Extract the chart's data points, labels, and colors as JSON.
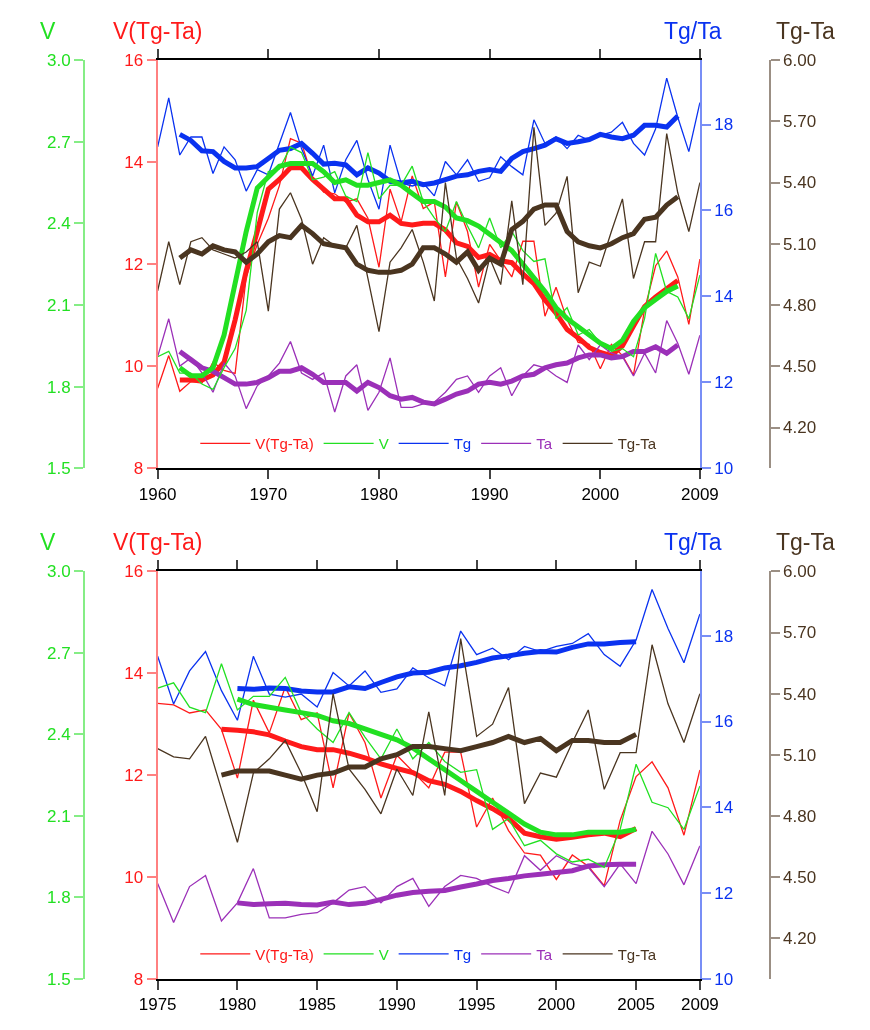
{
  "chart_data": [
    {
      "type": "line",
      "ylabel": "V(Tg-Ta)",
      "y2label": "Tg/Ta",
      "y3label": "V",
      "legend": "bottom",
      "xlim": [
        1960,
        2009
      ],
      "xticks": [
        1960,
        1970,
        1980,
        1990,
        2000,
        2009
      ],
      "ylim": [
        8,
        16
      ],
      "yticks": [
        8,
        10,
        12,
        14,
        16
      ],
      "y2lim": [
        10,
        19.5
      ],
      "y2ticks": [
        10,
        12,
        14,
        16,
        18
      ],
      "y3lim": [
        1.5,
        3.0
      ],
      "y3ticks": [
        1.5,
        1.8,
        2.1,
        2.4,
        2.7,
        {
          "value": 3.0,
          "label": "3.0"
        }
      ],
      "x": [
        1960,
        1961,
        1962,
        1963,
        1964,
        1965,
        1966,
        1967,
        1968,
        1969,
        1970,
        1971,
        1972,
        1973,
        1974,
        1975,
        1976,
        1977,
        1978,
        1979,
        1980,
        1981,
        1982,
        1983,
        1984,
        1985,
        1986,
        1987,
        1988,
        1989,
        1990,
        1991,
        1992,
        1993,
        1994,
        1995,
        1996,
        1997,
        1998,
        1999,
        2000,
        2001,
        2002,
        2003,
        2004,
        2005,
        2006,
        2007,
        2008,
        2009
      ],
      "series": [
        {
          "name": "V(Tg-Ta)",
          "color": "#ff1a1a",
          "values": [
            9.57,
            10.21,
            9.51,
            9.7,
            9.67,
            10.08,
            9.92,
            9.86,
            11.75,
            12.39,
            12.9,
            13.54,
            14.46,
            14.37,
            13.7,
            13.41,
            13.38,
            13.22,
            13.28,
            12.9,
            11.94,
            13.47,
            12.83,
            13.73,
            13.09,
            13.22,
            11.75,
            13.22,
            12.64,
            11.55,
            12.39,
            12.07,
            11.75,
            12.45,
            12.45,
            10.98,
            11.55,
            10.91,
            10.47,
            10.43,
            9.95,
            10.43,
            10.21,
            9.83,
            11.11,
            11.97,
            12.26,
            11.75,
            10.82,
            12.1
          ]
        },
        {
          "name": "V",
          "axis": "y3",
          "color": "#22e022",
          "values": [
            1.91,
            1.93,
            1.85,
            1.85,
            1.81,
            1.79,
            1.87,
            1.94,
            2.08,
            2.44,
            2.59,
            2.6,
            2.68,
            2.66,
            2.56,
            2.57,
            2.59,
            2.5,
            2.48,
            2.66,
            2.49,
            2.54,
            2.54,
            2.61,
            2.48,
            2.42,
            2.37,
            2.48,
            2.39,
            2.31,
            2.42,
            2.31,
            2.37,
            2.3,
            2.26,
            2.27,
            2.05,
            2.09,
            1.99,
            2.01,
            1.96,
            1.93,
            1.94,
            1.91,
            2.05,
            2.29,
            2.15,
            2.13,
            2.05,
            2.21
          ]
        },
        {
          "name": "Tg",
          "axis": "y2",
          "color": "#0a32f0",
          "values": [
            17.48,
            18.62,
            17.29,
            17.71,
            17.71,
            16.86,
            17.48,
            17.18,
            16.45,
            16.95,
            16.83,
            17.56,
            18.28,
            17.44,
            16.8,
            17.52,
            16.41,
            17.18,
            17.63,
            16.72,
            16.03,
            17.52,
            16.64,
            16.57,
            16.64,
            16.34,
            17.14,
            16.83,
            17.18,
            16.68,
            16.76,
            17.25,
            17.02,
            16.83,
            18.11,
            17.56,
            17.71,
            17.44,
            17.75,
            17.63,
            17.75,
            17.82,
            18.05,
            17.56,
            17.29,
            17.9,
            19.08,
            18.17,
            17.37,
            18.51
          ]
        },
        {
          "name": "Ta",
          "axis": "y2",
          "color": "#9b30b8",
          "values": [
            12.6,
            13.48,
            12.38,
            12.57,
            12.22,
            11.77,
            12.45,
            12.15,
            11.39,
            11.92,
            12.15,
            12.45,
            12.95,
            12.22,
            12.07,
            12.22,
            11.31,
            12.15,
            12.41,
            11.35,
            11.77,
            12.57,
            11.42,
            11.42,
            11.5,
            11.54,
            11.77,
            12.07,
            12.15,
            11.77,
            12.15,
            12.34,
            11.69,
            12.15,
            12.41,
            12.34,
            12.15,
            12.0,
            12.87,
            12.53,
            12.87,
            12.68,
            12.6,
            12.15,
            12.68,
            12.22,
            13.44,
            12.91,
            12.19,
            13.1
          ]
        },
        {
          "color": "#ff1a1a",
          "x": [
            1962,
            1963,
            1964,
            1965,
            1966,
            1967,
            1968,
            1969,
            1970,
            1971,
            1972,
            1973,
            1974,
            1975,
            1976,
            1977,
            1978,
            1979,
            1980,
            1981,
            1982,
            1983,
            1984,
            1985,
            1986,
            1987,
            1988,
            1989,
            1990,
            1991,
            1992,
            1993,
            1994,
            1995,
            1996,
            1997,
            1998,
            1999,
            2000,
            2001,
            2002,
            2003,
            2004,
            2005,
            2006,
            2007
          ],
          "values": [
            9.73,
            9.73,
            9.73,
            9.83,
            10.08,
            10.91,
            11.87,
            12.64,
            13.47,
            13.66,
            13.89,
            13.89,
            13.66,
            13.47,
            13.28,
            13.28,
            12.96,
            12.83,
            12.83,
            12.96,
            12.8,
            12.77,
            12.8,
            12.8,
            12.67,
            12.42,
            12.35,
            12.13,
            12.19,
            12.07,
            12.03,
            11.81,
            11.62,
            11.3,
            11.04,
            10.72,
            10.56,
            10.37,
            10.27,
            10.21,
            10.4,
            10.79,
            11.17,
            11.36,
            11.52,
            11.68
          ]
        },
        {
          "axis": "y3",
          "color": "#22e022",
          "x": [
            1962,
            1963,
            1964,
            1965,
            1966,
            1967,
            1968,
            1969,
            1970,
            1971,
            1972,
            1973,
            1974,
            1975,
            1976,
            1977,
            1978,
            1979,
            1980,
            1981,
            1982,
            1983,
            1984,
            1985,
            1986,
            1987,
            1988,
            1989,
            1990,
            1991,
            1992,
            1993,
            1994,
            1995,
            1996,
            1997,
            1998,
            1999,
            2000,
            2001,
            2002,
            2003,
            2004,
            2005,
            2006,
            2007
          ],
          "values": [
            1.87,
            1.84,
            1.84,
            1.87,
            1.99,
            2.18,
            2.37,
            2.53,
            2.57,
            2.61,
            2.62,
            2.62,
            2.62,
            2.59,
            2.55,
            2.56,
            2.54,
            2.54,
            2.55,
            2.56,
            2.54,
            2.51,
            2.48,
            2.48,
            2.46,
            2.42,
            2.41,
            2.39,
            2.36,
            2.33,
            2.3,
            2.25,
            2.2,
            2.15,
            2.09,
            2.05,
            2.02,
            1.99,
            1.96,
            1.94,
            1.97,
            2.04,
            2.09,
            2.12,
            2.15,
            2.17
          ]
        },
        {
          "axis": "y2",
          "color": "#0a32f0",
          "x": [
            1962,
            1963,
            1964,
            1965,
            1966,
            1967,
            1968,
            1969,
            1970,
            1971,
            1972,
            1973,
            1974,
            1975,
            1976,
            1977,
            1978,
            1979,
            1980,
            1981,
            1982,
            1983,
            1984,
            1985,
            1986,
            1987,
            1988,
            1989,
            1990,
            1991,
            1992,
            1993,
            1994,
            1995,
            1996,
            1997,
            1998,
            1999,
            2000,
            2001,
            2002,
            2003,
            2004,
            2005,
            2006,
            2007
          ],
          "values": [
            17.77,
            17.63,
            17.39,
            17.37,
            17.14,
            16.99,
            16.99,
            17.02,
            17.21,
            17.4,
            17.44,
            17.56,
            17.33,
            17.08,
            17.1,
            17.06,
            16.83,
            16.99,
            16.87,
            16.68,
            16.64,
            16.68,
            16.6,
            16.64,
            16.72,
            16.8,
            16.83,
            16.91,
            16.95,
            16.91,
            17.21,
            17.37,
            17.44,
            17.52,
            17.67,
            17.56,
            17.6,
            17.65,
            17.77,
            17.71,
            17.67,
            17.75,
            17.98,
            17.98,
            17.94,
            18.2
          ]
        },
        {
          "axis": "y2",
          "color": "#9b30b8",
          "x": [
            1962,
            1963,
            1964,
            1965,
            1966,
            1967,
            1968,
            1969,
            1970,
            1971,
            1972,
            1973,
            1974,
            1975,
            1976,
            1977,
            1978,
            1979,
            1980,
            1981,
            1982,
            1983,
            1984,
            1985,
            1986,
            1987,
            1988,
            1989,
            1990,
            1991,
            1992,
            1993,
            1994,
            1995,
            1996,
            1997,
            1998,
            1999,
            2000,
            2001,
            2002,
            2003,
            2004,
            2005,
            2006,
            2007
          ],
          "values": [
            12.72,
            12.53,
            12.34,
            12.26,
            12.11,
            11.96,
            11.96,
            12.0,
            12.11,
            12.26,
            12.26,
            12.34,
            12.19,
            12.0,
            12.0,
            12.0,
            11.8,
            12.0,
            11.88,
            11.69,
            11.61,
            11.65,
            11.54,
            11.5,
            11.61,
            11.73,
            11.8,
            11.96,
            12.0,
            11.96,
            12.03,
            12.15,
            12.19,
            12.34,
            12.41,
            12.45,
            12.57,
            12.64,
            12.64,
            12.57,
            12.6,
            12.72,
            12.72,
            12.83,
            12.68,
            12.87
          ]
        }
      ]
    },
    {
      "type": "line",
      "ylabel": "Tg-Ta",
      "legend": "bottom",
      "tick_labels": "y",
      "xlim": [
        1960,
        2009
      ],
      "ylim": [
        4.0,
        6.0
      ],
      "yticks": [
        {
          "value": 4.2,
          "label": "4.20"
        },
        {
          "value": 4.5,
          "label": "4.50"
        },
        {
          "value": 4.8,
          "label": "4.80"
        },
        {
          "value": 5.1,
          "label": "5.10"
        },
        {
          "value": 5.4,
          "label": "5.40"
        },
        {
          "value": 5.7,
          "label": "5.70"
        },
        {
          "value": 6.0,
          "label": "6.00"
        }
      ],
      "x": [
        1960,
        1961,
        1962,
        1963,
        1964,
        1965,
        1966,
        1967,
        1968,
        1969,
        1970,
        1971,
        1972,
        1973,
        1974,
        1975,
        1976,
        1977,
        1978,
        1979,
        1980,
        1981,
        1982,
        1983,
        1984,
        1985,
        1986,
        1987,
        1988,
        1989,
        1990,
        1991,
        1992,
        1993,
        1994,
        1995,
        1996,
        1997,
        1998,
        1999,
        2000,
        2001,
        2002,
        2003,
        2004,
        2005,
        2006,
        2007,
        2008,
        2009
      ],
      "series": [
        {
          "name": "Tg-Ta",
          "color": "#4a3520",
          "values": [
            4.87,
            5.11,
            4.9,
            5.11,
            5.13,
            5.07,
            5.05,
            5.03,
            5.06,
            5.11,
            4.77,
            5.27,
            5.35,
            5.22,
            5.0,
            5.13,
            5.09,
            5.08,
            5.19,
            4.93,
            4.67,
            5.01,
            5.08,
            5.17,
            5.01,
            4.82,
            5.4,
            5.03,
            4.93,
            4.81,
            5.03,
            4.9,
            5.31,
            4.9,
            5.67,
            5.19,
            5.25,
            5.43,
            4.86,
            5.01,
            4.99,
            5.16,
            5.32,
            4.93,
            5.11,
            5.11,
            5.64,
            5.35,
            5.16,
            5.4
          ]
        },
        {
          "color": "#4a3520",
          "x": [
            1962,
            1963,
            1964,
            1965,
            1966,
            1967,
            1968,
            1969,
            1970,
            1971,
            1972,
            1973,
            1974,
            1975,
            1976,
            1977,
            1978,
            1979,
            1980,
            1981,
            1982,
            1983,
            1984,
            1985,
            1986,
            1987,
            1988,
            1989,
            1990,
            1991,
            1992,
            1993,
            1994,
            1995,
            1996,
            1997,
            1998,
            1999,
            2000,
            2001,
            2002,
            2003,
            2004,
            2005,
            2006,
            2007
          ],
          "values": [
            5.03,
            5.07,
            5.05,
            5.09,
            5.07,
            5.06,
            5.01,
            5.05,
            5.11,
            5.14,
            5.13,
            5.19,
            5.15,
            5.1,
            5.09,
            5.08,
            5.0,
            4.97,
            4.96,
            4.96,
            4.97,
            5.0,
            5.08,
            5.08,
            5.05,
            5.01,
            5.06,
            4.97,
            5.03,
            5.0,
            5.17,
            5.21,
            5.27,
            5.29,
            5.29,
            5.16,
            5.11,
            5.09,
            5.08,
            5.1,
            5.13,
            5.15,
            5.22,
            5.23,
            5.29,
            5.33
          ]
        }
      ]
    },
    {
      "type": "line",
      "ylabel": "V(Tg-Ta)",
      "y2label": "Tg/Ta",
      "y3label": "V",
      "legend": "bottom",
      "xlim": [
        1975,
        2009
      ],
      "xticks": [
        1975,
        1980,
        1985,
        1990,
        1995,
        2000,
        2005,
        2009
      ],
      "ylim": [
        8,
        16
      ],
      "yticks": [
        8,
        10,
        12,
        14,
        16
      ],
      "y2lim": [
        10,
        19.5
      ],
      "y2ticks": [
        10,
        12,
        14,
        16,
        18
      ],
      "y3lim": [
        1.5,
        3.0
      ],
      "y3ticks": [
        1.5,
        1.8,
        2.1,
        2.4,
        2.7,
        {
          "value": 3.0,
          "label": "3.0"
        }
      ],
      "x": [
        1975,
        1976,
        1977,
        1978,
        1979,
        1980,
        1981,
        1982,
        1983,
        1984,
        1985,
        1986,
        1987,
        1988,
        1989,
        1990,
        1991,
        1992,
        1993,
        1994,
        1995,
        1996,
        1997,
        1998,
        1999,
        2000,
        2001,
        2002,
        2003,
        2004,
        2005,
        2006,
        2007,
        2008,
        2009
      ],
      "series": [
        {
          "name": "V(Tg-Ta)",
          "color": "#ff1a1a",
          "values": [
            13.41,
            13.38,
            13.22,
            13.28,
            12.9,
            11.94,
            13.47,
            12.83,
            13.73,
            13.09,
            13.22,
            11.75,
            13.22,
            12.64,
            11.55,
            12.39,
            12.07,
            11.75,
            12.45,
            12.45,
            10.98,
            11.55,
            10.91,
            10.47,
            10.43,
            9.95,
            10.43,
            10.21,
            9.83,
            11.11,
            11.97,
            12.26,
            11.75,
            10.82,
            12.1
          ]
        },
        {
          "name": "V",
          "axis": "y3",
          "color": "#22e022",
          "values": [
            2.57,
            2.59,
            2.5,
            2.48,
            2.66,
            2.49,
            2.54,
            2.54,
            2.61,
            2.48,
            2.42,
            2.37,
            2.48,
            2.39,
            2.31,
            2.42,
            2.31,
            2.37,
            2.3,
            2.26,
            2.27,
            2.05,
            2.09,
            1.99,
            2.01,
            1.96,
            1.93,
            1.94,
            1.91,
            2.05,
            2.29,
            2.15,
            2.13,
            2.05,
            2.21
          ]
        },
        {
          "name": "Tg",
          "axis": "y2",
          "color": "#0a32f0",
          "values": [
            17.52,
            16.41,
            17.18,
            17.63,
            16.72,
            16.03,
            17.52,
            16.64,
            16.57,
            16.64,
            16.34,
            17.14,
            16.83,
            17.18,
            16.68,
            16.76,
            17.25,
            17.02,
            16.83,
            18.11,
            17.56,
            17.71,
            17.44,
            17.75,
            17.63,
            17.75,
            17.82,
            18.05,
            17.56,
            17.29,
            17.9,
            19.08,
            18.17,
            17.37,
            18.51
          ]
        },
        {
          "name": "Ta",
          "axis": "y2",
          "color": "#9b30b8",
          "values": [
            12.22,
            11.31,
            12.15,
            12.41,
            11.35,
            11.77,
            12.57,
            11.42,
            11.42,
            11.5,
            11.54,
            11.77,
            12.07,
            12.15,
            11.77,
            12.15,
            12.34,
            11.69,
            12.15,
            12.41,
            12.34,
            12.15,
            12.0,
            12.87,
            12.53,
            12.87,
            12.68,
            12.6,
            12.15,
            12.68,
            12.22,
            13.44,
            12.91,
            12.19,
            13.1
          ]
        },
        {
          "color": "#ff1a1a",
          "x": [
            1979,
            1980,
            1981,
            1982,
            1983,
            1984,
            1985,
            1986,
            1987,
            1988,
            1989,
            1990,
            1991,
            1992,
            1993,
            1994,
            1995,
            1996,
            1997,
            1998,
            1999,
            2000,
            2001,
            2002,
            2003,
            2004,
            2005
          ],
          "values": [
            12.9,
            12.88,
            12.85,
            12.79,
            12.67,
            12.56,
            12.5,
            12.5,
            12.43,
            12.34,
            12.22,
            12.13,
            12.05,
            11.89,
            11.82,
            11.68,
            11.5,
            11.34,
            11.15,
            10.86,
            10.79,
            10.74,
            10.78,
            10.83,
            10.86,
            10.79,
            10.95
          ]
        },
        {
          "axis": "y3",
          "color": "#22e022",
          "x": [
            1980,
            1981,
            1982,
            1983,
            1984,
            1985,
            1986,
            1987,
            1988,
            1989,
            1990,
            1991,
            1992,
            1993,
            1994,
            1995,
            1996,
            1997,
            1998,
            1999,
            2000,
            2001,
            2002,
            2003,
            2004,
            2005
          ],
          "values": [
            2.53,
            2.51,
            2.5,
            2.49,
            2.48,
            2.47,
            2.45,
            2.44,
            2.42,
            2.4,
            2.38,
            2.35,
            2.31,
            2.27,
            2.23,
            2.19,
            2.15,
            2.11,
            2.07,
            2.04,
            2.03,
            2.03,
            2.04,
            2.04,
            2.04,
            2.05
          ]
        },
        {
          "axis": "y2",
          "color": "#0a32f0",
          "x": [
            1980,
            1981,
            1982,
            1983,
            1984,
            1985,
            1986,
            1987,
            1988,
            1989,
            1990,
            1991,
            1992,
            1993,
            1994,
            1995,
            1996,
            1997,
            1998,
            1999,
            2000,
            2001,
            2002,
            2003,
            2004,
            2005
          ],
          "values": [
            16.77,
            16.75,
            16.78,
            16.77,
            16.71,
            16.69,
            16.69,
            16.81,
            16.77,
            16.91,
            17.04,
            17.13,
            17.15,
            17.25,
            17.3,
            17.38,
            17.48,
            17.53,
            17.59,
            17.63,
            17.62,
            17.73,
            17.81,
            17.81,
            17.84,
            17.86
          ]
        },
        {
          "axis": "y2",
          "color": "#9b30b8",
          "x": [
            1980,
            1981,
            1982,
            1983,
            1984,
            1985,
            1986,
            1987,
            1988,
            1989,
            1990,
            1991,
            1992,
            1993,
            1994,
            1995,
            1996,
            1997,
            1998,
            1999,
            2000,
            2001,
            2002,
            2003,
            2004,
            2005
          ],
          "values": [
            11.77,
            11.73,
            11.75,
            11.76,
            11.73,
            11.72,
            11.79,
            11.73,
            11.76,
            11.85,
            11.95,
            12.01,
            12.04,
            12.06,
            12.14,
            12.21,
            12.29,
            12.34,
            12.4,
            12.44,
            12.48,
            12.52,
            12.63,
            12.66,
            12.67,
            12.67
          ]
        }
      ]
    },
    {
      "type": "line",
      "ylabel": "Tg-Ta",
      "legend": "bottom",
      "tick_labels": "y",
      "xlim": [
        1975,
        2009
      ],
      "ylim": [
        4.0,
        6.0
      ],
      "yticks": [
        {
          "value": 4.2,
          "label": "4.20"
        },
        {
          "value": 4.5,
          "label": "4.50"
        },
        {
          "value": 4.8,
          "label": "4.80"
        },
        {
          "value": 5.1,
          "label": "5.10"
        },
        {
          "value": 5.4,
          "label": "5.40"
        },
        {
          "value": 5.7,
          "label": "5.70"
        },
        {
          "value": 6.0,
          "label": "6.00"
        }
      ],
      "x": [
        1975,
        1976,
        1977,
        1978,
        1979,
        1980,
        1981,
        1982,
        1983,
        1984,
        1985,
        1986,
        1987,
        1988,
        1989,
        1990,
        1991,
        1992,
        1993,
        1994,
        1995,
        1996,
        1997,
        1998,
        1999,
        2000,
        2001,
        2002,
        2003,
        2004,
        2005,
        2006,
        2007,
        2008,
        2009
      ],
      "series": [
        {
          "name": "Tg-Ta",
          "color": "#4a3520",
          "values": [
            5.13,
            5.09,
            5.08,
            5.19,
            4.93,
            4.67,
            5.01,
            5.08,
            5.17,
            5.01,
            4.82,
            5.4,
            5.03,
            4.93,
            4.81,
            5.03,
            4.9,
            5.31,
            4.9,
            5.67,
            5.19,
            5.25,
            5.43,
            4.86,
            5.01,
            4.99,
            5.16,
            5.32,
            4.93,
            5.11,
            5.11,
            5.64,
            5.35,
            5.16,
            5.4
          ]
        },
        {
          "color": "#4a3520",
          "x": [
            1979,
            1980,
            1981,
            1982,
            1983,
            1984,
            1985,
            1986,
            1987,
            1988,
            1989,
            1990,
            1991,
            1992,
            1993,
            1994,
            1995,
            1996,
            1997,
            1998,
            1999,
            2000,
            2001,
            2002,
            2003,
            2004,
            2005
          ],
          "values": [
            5.0,
            5.02,
            5.02,
            5.02,
            5.0,
            4.98,
            5.0,
            5.01,
            5.04,
            5.04,
            5.08,
            5.1,
            5.14,
            5.14,
            5.13,
            5.12,
            5.14,
            5.16,
            5.19,
            5.16,
            5.18,
            5.12,
            5.17,
            5.17,
            5.16,
            5.16,
            5.2
          ]
        }
      ]
    }
  ]
}
